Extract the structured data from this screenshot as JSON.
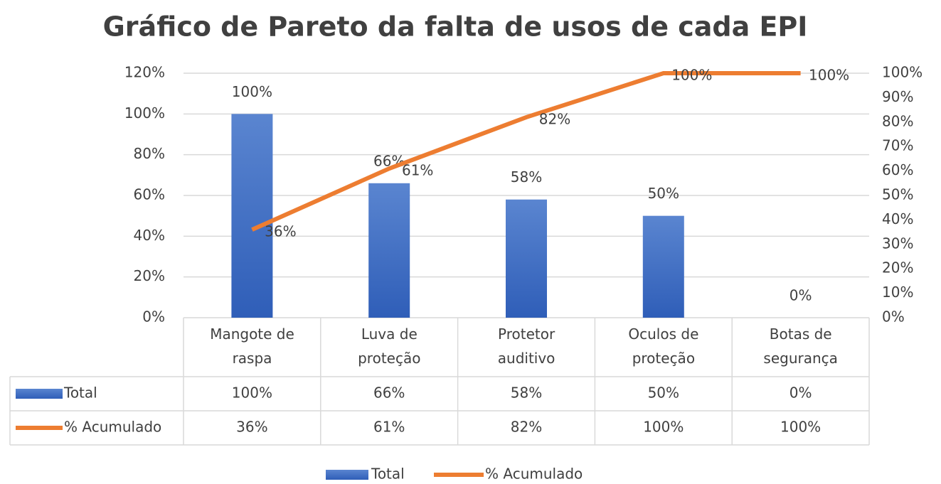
{
  "chart_data": {
    "type": "bar",
    "title": "Gráfico de Pareto da falta de usos de cada EPI",
    "categories": [
      "Mangote de\nraspa",
      "Luva de\nproteção",
      "Protetor\nauditivo",
      "Oculos de\nproteção",
      "Botas de\nsegurança"
    ],
    "series": [
      {
        "name": "Total",
        "type": "bar",
        "color": "#4472c4",
        "values": [
          100,
          66,
          58,
          50,
          0
        ],
        "value_labels": [
          "100%",
          "66%",
          "58%",
          "50%",
          "0%"
        ]
      },
      {
        "name": "% Acumulado",
        "type": "line",
        "axis": "y2",
        "color": "#ed7d31",
        "values": [
          36,
          61,
          82,
          100,
          100
        ],
        "value_labels": [
          "36%",
          "61%",
          "82%",
          "100%",
          "100%"
        ]
      }
    ],
    "ylim": [
      0,
      120
    ],
    "yticks": [
      {
        "value": 0,
        "label": "0%"
      },
      {
        "value": 20,
        "label": "20%"
      },
      {
        "value": 40,
        "label": "40%"
      },
      {
        "value": 60,
        "label": "60%"
      },
      {
        "value": 80,
        "label": "80%"
      },
      {
        "value": 100,
        "label": "100%"
      },
      {
        "value": 120,
        "label": "120%"
      }
    ],
    "y2lim": [
      0,
      100
    ],
    "y2ticks": [
      {
        "value": 0,
        "label": "0%"
      },
      {
        "value": 10,
        "label": "10%"
      },
      {
        "value": 20,
        "label": "20%"
      },
      {
        "value": 30,
        "label": "30%"
      },
      {
        "value": 40,
        "label": "40%"
      },
      {
        "value": 50,
        "label": "50%"
      },
      {
        "value": 60,
        "label": "60%"
      },
      {
        "value": 70,
        "label": "70%"
      },
      {
        "value": 80,
        "label": "80%"
      },
      {
        "value": 90,
        "label": "90%"
      },
      {
        "value": 100,
        "label": "100%"
      }
    ],
    "grid": true
  }
}
